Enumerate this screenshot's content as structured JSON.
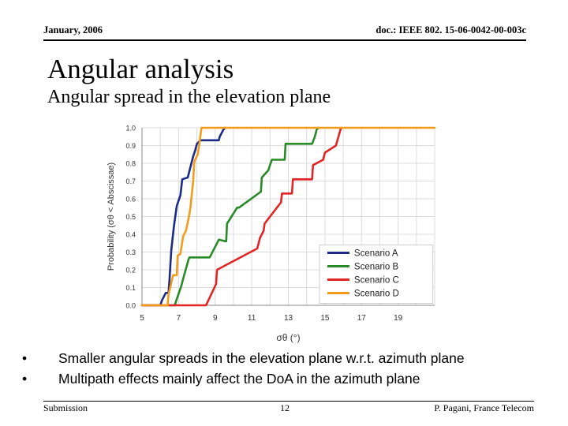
{
  "header": {
    "date": "January, 2006",
    "doc_id": "doc.: IEEE 802. 15-06-0042-00-003c"
  },
  "slide": {
    "title": "Angular analysis",
    "subtitle": "Angular spread in the elevation plane"
  },
  "bullets": [
    "Smaller angular spreads in the elevation plane w.r.t. azimuth plane",
    "Multipath effects mainly affect the DoA in the azimuth plane"
  ],
  "footer": {
    "left": "Submission",
    "page": "12",
    "author": "P. Pagani, France Telecom"
  },
  "chart_data": {
    "type": "line",
    "xlabel": "σθ (°)",
    "ylabel": "Probability (σθ < Abscissae)",
    "xlim": [
      5,
      21
    ],
    "ylim": [
      0,
      1
    ],
    "xticks": [
      5,
      7,
      9,
      11,
      13,
      15,
      17,
      19
    ],
    "yticks": [
      0.0,
      0.1,
      0.2,
      0.3,
      0.4,
      0.5,
      0.6,
      0.7,
      0.8,
      0.9,
      1.0
    ],
    "grid": true,
    "legend_position": "bottom-right",
    "series": [
      {
        "name": "Scenario A",
        "color": "#1c2b8a",
        "x": [
          5.0,
          6.0,
          6.1,
          6.3,
          6.45,
          6.5,
          6.6,
          6.75,
          6.9,
          7.1,
          7.2,
          7.5,
          7.8,
          7.9,
          8.0,
          8.2,
          9.2,
          9.25,
          9.45,
          9.55
        ],
        "y": [
          0,
          0,
          0.03,
          0.07,
          0.07,
          0.14,
          0.31,
          0.45,
          0.56,
          0.62,
          0.71,
          0.72,
          0.84,
          0.87,
          0.91,
          0.93,
          0.93,
          0.95,
          0.99,
          1.0
        ]
      },
      {
        "name": "Scenario B",
        "color": "#2a8a28",
        "x": [
          5.0,
          6.8,
          6.85,
          7.15,
          7.25,
          7.55,
          7.6,
          8.7,
          9.2,
          9.6,
          9.65,
          10.2,
          10.3,
          11.5,
          11.55,
          11.9,
          12.1,
          12.8,
          12.85,
          14.3,
          14.45,
          14.55,
          14.65
        ],
        "y": [
          0,
          0,
          0.02,
          0.11,
          0.15,
          0.26,
          0.27,
          0.27,
          0.37,
          0.36,
          0.46,
          0.55,
          0.55,
          0.64,
          0.72,
          0.76,
          0.82,
          0.82,
          0.91,
          0.91,
          0.95,
          0.99,
          1.0
        ]
      },
      {
        "name": "Scenario C",
        "color": "#e22424",
        "x": [
          5.0,
          7.0,
          8.5,
          9.05,
          9.1,
          11.3,
          11.45,
          11.65,
          11.7,
          12.6,
          12.65,
          13.2,
          13.25,
          14.3,
          14.35,
          14.9,
          15.0,
          15.6,
          15.85,
          15.9
        ],
        "y": [
          0,
          0,
          0,
          0.12,
          0.2,
          0.32,
          0.38,
          0.42,
          0.46,
          0.58,
          0.63,
          0.63,
          0.71,
          0.71,
          0.79,
          0.82,
          0.86,
          0.9,
          0.99,
          1.0
        ]
      },
      {
        "name": "Scenario D",
        "color": "#f39b1a",
        "x": [
          5.0,
          6.4,
          6.45,
          6.7,
          6.9,
          6.95,
          7.1,
          7.25,
          7.4,
          7.55,
          7.65,
          7.8,
          7.85,
          7.9,
          8.05,
          8.15,
          8.25,
          21.0
        ],
        "y": [
          0,
          0,
          0.06,
          0.17,
          0.17,
          0.28,
          0.29,
          0.39,
          0.42,
          0.49,
          0.55,
          0.7,
          0.8,
          0.82,
          0.85,
          0.92,
          1.0,
          1.0
        ]
      }
    ]
  },
  "colors": {
    "plot_background": "#ffffff",
    "grid": "#dcdcdc",
    "rule": "#000000"
  }
}
